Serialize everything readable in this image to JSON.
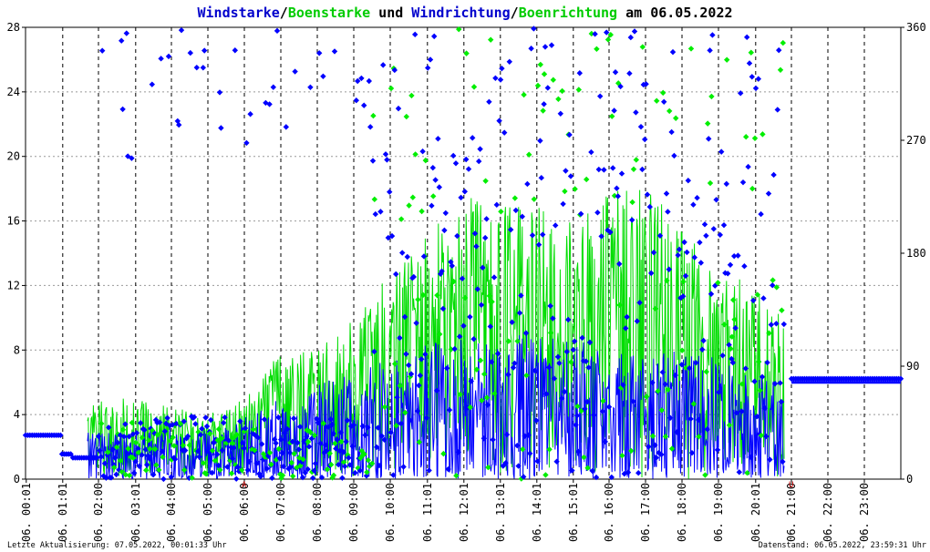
{
  "chart_data": {
    "type": "line+scatter",
    "title_parts": [
      {
        "text": "Windstarke",
        "color": "#0000cc"
      },
      {
        "text": "/",
        "color": "#000000"
      },
      {
        "text": "Boenstarke",
        "color": "#00cc00"
      },
      {
        "text": " und ",
        "color": "#000000"
      },
      {
        "text": "Windrichtung",
        "color": "#0000cc"
      },
      {
        "text": "/",
        "color": "#000000"
      },
      {
        "text": "Boenrichtung",
        "color": "#00cc00"
      },
      {
        "text": " am 06.05.2022",
        "color": "#000000"
      }
    ],
    "y_left": {
      "min": 0,
      "max": 28,
      "ticks": [
        "0",
        "4",
        "8",
        "12",
        "16",
        "20",
        "24",
        "28"
      ]
    },
    "y_right": {
      "min": 0,
      "max": 360,
      "ticks": [
        "0",
        "90",
        "180",
        "270",
        "360"
      ]
    },
    "x_hours": {
      "min": 0,
      "max": 24
    },
    "x_ticks": [
      "06. 00:01",
      "06. 01:01",
      "06. 02:00",
      "06. 03:01",
      "06. 04:00",
      "06. 05:00",
      "06. 06:00",
      "06. 07:00",
      "06. 08:00",
      "06. 09:00",
      "06. 10:00",
      "06. 11:01",
      "06. 12:01",
      "06. 13:01",
      "06. 14:01",
      "06. 15:01",
      "06. 16:00",
      "06. 17:00",
      "06. 18:00",
      "06. 19:00",
      "06. 20:01",
      "06. 21:00",
      "06. 22:00",
      "06. 23:00"
    ],
    "x_tick_hours": [
      0.02,
      1.02,
      2.0,
      3.02,
      4.0,
      5.0,
      6.0,
      7.0,
      8.0,
      9.0,
      10.0,
      11.02,
      12.02,
      13.02,
      14.02,
      15.02,
      16.0,
      17.0,
      18.0,
      19.0,
      20.02,
      21.0,
      22.0,
      23.0
    ],
    "red_markers": [
      {
        "hour": 6.0,
        "label": "A"
      },
      {
        "hour": 21.0,
        "label": "U"
      }
    ],
    "grid": true,
    "series": [
      {
        "name": "Windstarke",
        "color": "#0000ff",
        "kind": "line",
        "axis": "left"
      },
      {
        "name": "Boenstarke",
        "color": "#00dd00",
        "kind": "line",
        "axis": "left"
      },
      {
        "name": "Windrichtung",
        "color": "#0000ff",
        "kind": "scatter-diamond",
        "axis": "right"
      },
      {
        "name": "Boenrichtung",
        "color": "#00ee00",
        "kind": "scatter-diamond",
        "axis": "right"
      }
    ],
    "envelope_hours": [
      0.0,
      1.0,
      2.0,
      3.0,
      4.0,
      5.0,
      6.0,
      7.0,
      8.0,
      9.0,
      10.0,
      11.0,
      12.0,
      13.0,
      14.0,
      15.0,
      16.0,
      17.0,
      18.0,
      19.0,
      20.0,
      20.8
    ],
    "wind_envelope_max": [
      2.7,
      2.7,
      3.0,
      3.0,
      3.5,
      3.0,
      4.0,
      5.0,
      6.0,
      6.5,
      7.5,
      8.5,
      9.0,
      9.0,
      9.0,
      8.5,
      8.5,
      8.5,
      8.0,
      7.5,
      6.5,
      6.0
    ],
    "gust_envelope_max": [
      2.5,
      2.5,
      5.0,
      5.0,
      4.5,
      4.0,
      5.0,
      8.0,
      8.0,
      10.0,
      13.0,
      15.0,
      18.0,
      17.0,
      17.0,
      16.0,
      18.0,
      18.0,
      16.0,
      13.0,
      12.0,
      10.0
    ],
    "wind_plateau": [
      {
        "from": 0.0,
        "to": 1.0,
        "value": 2.7
      },
      {
        "from": 1.0,
        "to": 1.3,
        "value": 1.5
      },
      {
        "from": 1.3,
        "to": 2.0,
        "value": 1.3
      },
      {
        "from": 21.0,
        "to": 24.0,
        "value": 6.0
      }
    ],
    "direction_plateau": [
      {
        "from": 0.0,
        "to": 1.0,
        "value": 35
      },
      {
        "from": 1.0,
        "to": 1.3,
        "value": 20
      },
      {
        "from": 1.3,
        "to": 2.0,
        "value": 17
      },
      {
        "from": 21.0,
        "to": 24.0,
        "value": 80
      }
    ]
  },
  "footer": {
    "left": "Letzte Aktualisierung: 07.05.2022, 00:01:33 Uhr",
    "right": "Datenstand: 06.05.2022, 23:59:31 Uhr"
  }
}
